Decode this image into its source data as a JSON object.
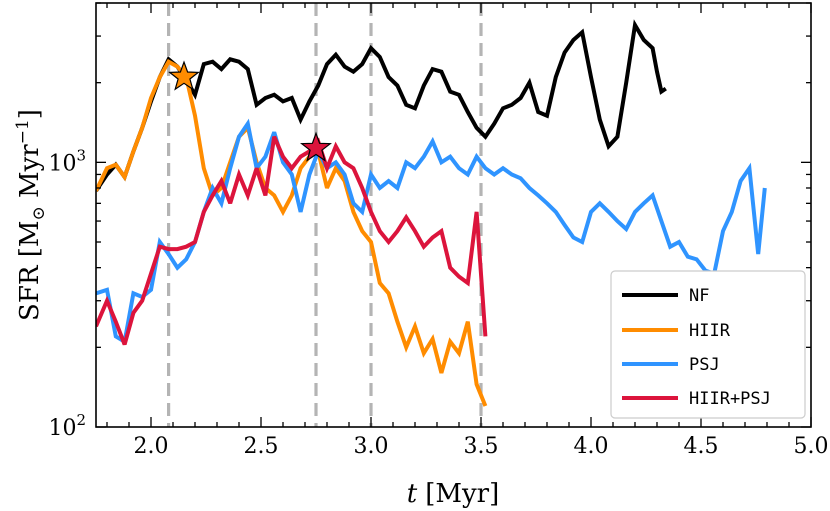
{
  "chart_data": {
    "type": "line",
    "title": "",
    "xlabel": "t [Myr]",
    "xlabel_var": "t",
    "xlabel_unit": "[Myr]",
    "ylabel": "SFR [M⊙ Myr⁻¹]",
    "ylabel_prefix": "SFR [M",
    "ylabel_sub": "⊙",
    "ylabel_mid": " Myr",
    "ylabel_sup": "−1",
    "ylabel_suffix": "]",
    "yscale": "log",
    "xlim": [
      1.75,
      5.0
    ],
    "ylim": [
      100,
      4000
    ],
    "xticks": [
      2.0,
      2.5,
      3.0,
      3.5,
      4.0,
      4.5,
      5.0
    ],
    "xtick_labels": [
      "2.0",
      "2.5",
      "3.0",
      "3.5",
      "4.0",
      "4.5",
      "5.0"
    ],
    "yticks_major": [
      100,
      1000
    ],
    "ytick_labels": [
      {
        "base": "10",
        "exp": "2"
      },
      {
        "base": "10",
        "exp": "3"
      }
    ],
    "vlines": [
      2.08,
      2.75,
      3.0,
      3.5
    ],
    "vline_color": "#b4b4b4",
    "legend_position": "lower-right",
    "series": [
      {
        "name": "NF",
        "color": "#000000",
        "x": [
          1.75,
          1.8,
          1.84,
          1.88,
          1.92,
          1.96,
          2.0,
          2.04,
          2.08,
          2.12,
          2.16,
          2.2,
          2.24,
          2.28,
          2.32,
          2.36,
          2.4,
          2.44,
          2.48,
          2.52,
          2.56,
          2.6,
          2.64,
          2.68,
          2.72,
          2.76,
          2.8,
          2.84,
          2.88,
          2.92,
          2.96,
          3.0,
          3.04,
          3.08,
          3.12,
          3.16,
          3.2,
          3.24,
          3.28,
          3.32,
          3.36,
          3.4,
          3.44,
          3.48,
          3.52,
          3.56,
          3.6,
          3.64,
          3.68,
          3.72,
          3.76,
          3.8,
          3.84,
          3.88,
          3.92,
          3.96,
          4.0,
          4.04,
          4.08,
          4.12,
          4.16,
          4.2,
          4.24,
          4.28,
          4.3,
          4.32,
          4.34
        ],
        "y": [
          780,
          900,
          980,
          880,
          1100,
          1350,
          1700,
          2100,
          2450,
          2300,
          2050,
          1800,
          2350,
          2400,
          2250,
          2450,
          2400,
          2250,
          1650,
          1750,
          1800,
          1700,
          1750,
          1450,
          1700,
          1950,
          2350,
          2550,
          2300,
          2200,
          2350,
          2700,
          2500,
          2100,
          1950,
          1650,
          1600,
          1950,
          2250,
          2200,
          1850,
          1800,
          1550,
          1350,
          1250,
          1400,
          1600,
          1650,
          1750,
          2000,
          1550,
          1500,
          2100,
          2600,
          2900,
          3100,
          2100,
          1450,
          1150,
          1250,
          2000,
          3300,
          2900,
          2700,
          2200,
          1850,
          1900
        ]
      },
      {
        "name": "HIIR",
        "color": "#ff8c00",
        "x": [
          1.75,
          1.8,
          1.84,
          1.88,
          1.92,
          1.96,
          2.0,
          2.04,
          2.08,
          2.12,
          2.16,
          2.2,
          2.24,
          2.28,
          2.32,
          2.36,
          2.4,
          2.44,
          2.48,
          2.52,
          2.56,
          2.6,
          2.64,
          2.68,
          2.72,
          2.76,
          2.8,
          2.84,
          2.88,
          2.92,
          2.96,
          3.0,
          3.04,
          3.08,
          3.12,
          3.16,
          3.2,
          3.24,
          3.28,
          3.32,
          3.36,
          3.4,
          3.44,
          3.48,
          3.52
        ],
        "y": [
          780,
          950,
          980,
          880,
          1100,
          1350,
          1750,
          2100,
          2400,
          2300,
          2100,
          1500,
          950,
          750,
          800,
          1000,
          1250,
          1350,
          1000,
          800,
          750,
          650,
          750,
          950,
          1050,
          1100,
          800,
          950,
          850,
          650,
          550,
          500,
          350,
          320,
          250,
          200,
          240,
          190,
          215,
          160,
          210,
          190,
          250,
          145,
          120
        ]
      },
      {
        "name": "PSJ",
        "color": "#2f94ff",
        "x": [
          1.75,
          1.8,
          1.84,
          1.88,
          1.92,
          1.96,
          2.0,
          2.04,
          2.08,
          2.12,
          2.16,
          2.2,
          2.24,
          2.28,
          2.32,
          2.36,
          2.4,
          2.44,
          2.48,
          2.52,
          2.56,
          2.6,
          2.64,
          2.68,
          2.72,
          2.76,
          2.8,
          2.84,
          2.88,
          2.92,
          2.96,
          3.0,
          3.04,
          3.08,
          3.12,
          3.16,
          3.2,
          3.24,
          3.28,
          3.32,
          3.36,
          3.4,
          3.44,
          3.48,
          3.52,
          3.56,
          3.6,
          3.64,
          3.68,
          3.72,
          3.76,
          3.8,
          3.84,
          3.88,
          3.92,
          3.96,
          4.0,
          4.04,
          4.08,
          4.12,
          4.16,
          4.2,
          4.24,
          4.28,
          4.32,
          4.36,
          4.4,
          4.44,
          4.48,
          4.52,
          4.56,
          4.6,
          4.64,
          4.68,
          4.72,
          4.76,
          4.79
        ],
        "y": [
          320,
          330,
          220,
          210,
          320,
          310,
          330,
          500,
          450,
          400,
          430,
          500,
          650,
          800,
          700,
          950,
          1250,
          1400,
          950,
          1050,
          1300,
          1000,
          900,
          650,
          900,
          1100,
          950,
          1000,
          900,
          700,
          650,
          900,
          800,
          850,
          800,
          1000,
          950,
          1050,
          1200,
          1000,
          1050,
          950,
          900,
          1050,
          950,
          900,
          950,
          900,
          870,
          800,
          750,
          700,
          650,
          580,
          520,
          500,
          650,
          700,
          650,
          600,
          560,
          650,
          700,
          750,
          600,
          480,
          500,
          440,
          430,
          390,
          380,
          550,
          650,
          850,
          950,
          450,
          800
        ]
      },
      {
        "name": "HIIR+PSJ",
        "color": "#dc143c",
        "x": [
          1.75,
          1.8,
          1.84,
          1.88,
          1.92,
          1.96,
          2.0,
          2.04,
          2.08,
          2.12,
          2.16,
          2.2,
          2.24,
          2.28,
          2.32,
          2.36,
          2.4,
          2.44,
          2.48,
          2.52,
          2.56,
          2.6,
          2.64,
          2.68,
          2.72,
          2.76,
          2.8,
          2.84,
          2.88,
          2.92,
          2.96,
          3.0,
          3.04,
          3.08,
          3.12,
          3.16,
          3.2,
          3.24,
          3.28,
          3.32,
          3.36,
          3.4,
          3.44,
          3.48,
          3.52
        ],
        "y": [
          240,
          300,
          250,
          205,
          270,
          300,
          380,
          480,
          470,
          470,
          480,
          500,
          650,
          750,
          850,
          700,
          900,
          750,
          950,
          750,
          1250,
          1050,
          950,
          1050,
          1100,
          1200,
          950,
          1150,
          1000,
          950,
          800,
          650,
          550,
          500,
          550,
          620,
          550,
          480,
          520,
          550,
          400,
          370,
          350,
          650,
          220
        ]
      }
    ],
    "markers": [
      {
        "series": "HIIR",
        "x": 2.15,
        "y": 2100,
        "shape": "star",
        "color": "#ff8c00"
      },
      {
        "series": "HIIR+PSJ",
        "x": 2.75,
        "y": 1130,
        "shape": "star",
        "color": "#dc143c"
      }
    ]
  }
}
